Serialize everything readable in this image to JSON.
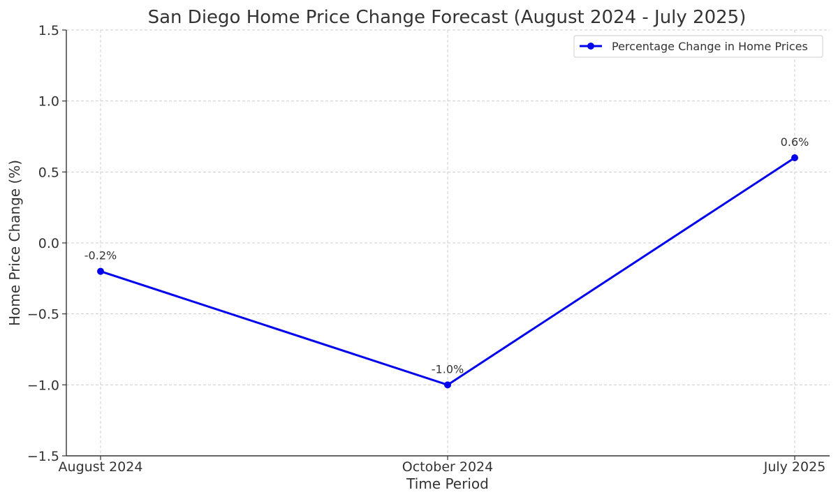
{
  "chart_data": {
    "type": "line",
    "title": "San Diego Home Price Change Forecast (August 2024 - July 2025)",
    "xlabel": "Time Period",
    "ylabel": "Home Price Change (%)",
    "categories": [
      "August 2024",
      "October 2024",
      "July 2025"
    ],
    "series": [
      {
        "name": "Percentage Change in Home Prices",
        "values": [
          -0.2,
          -1.0,
          0.6
        ],
        "data_labels": [
          "-0.2%",
          "-1.0%",
          "0.6%"
        ],
        "color": "#0000ee"
      }
    ],
    "ylim": [
      -1.5,
      1.5
    ],
    "yticks": [
      -1.5,
      -1.0,
      -0.5,
      0.0,
      0.5,
      1.0,
      1.5
    ],
    "ytick_labels": [
      "−1.5",
      "−1.0",
      "−0.5",
      "0.0",
      "0.5",
      "1.0",
      "1.5"
    ],
    "grid": true,
    "legend_position": "top-right"
  }
}
